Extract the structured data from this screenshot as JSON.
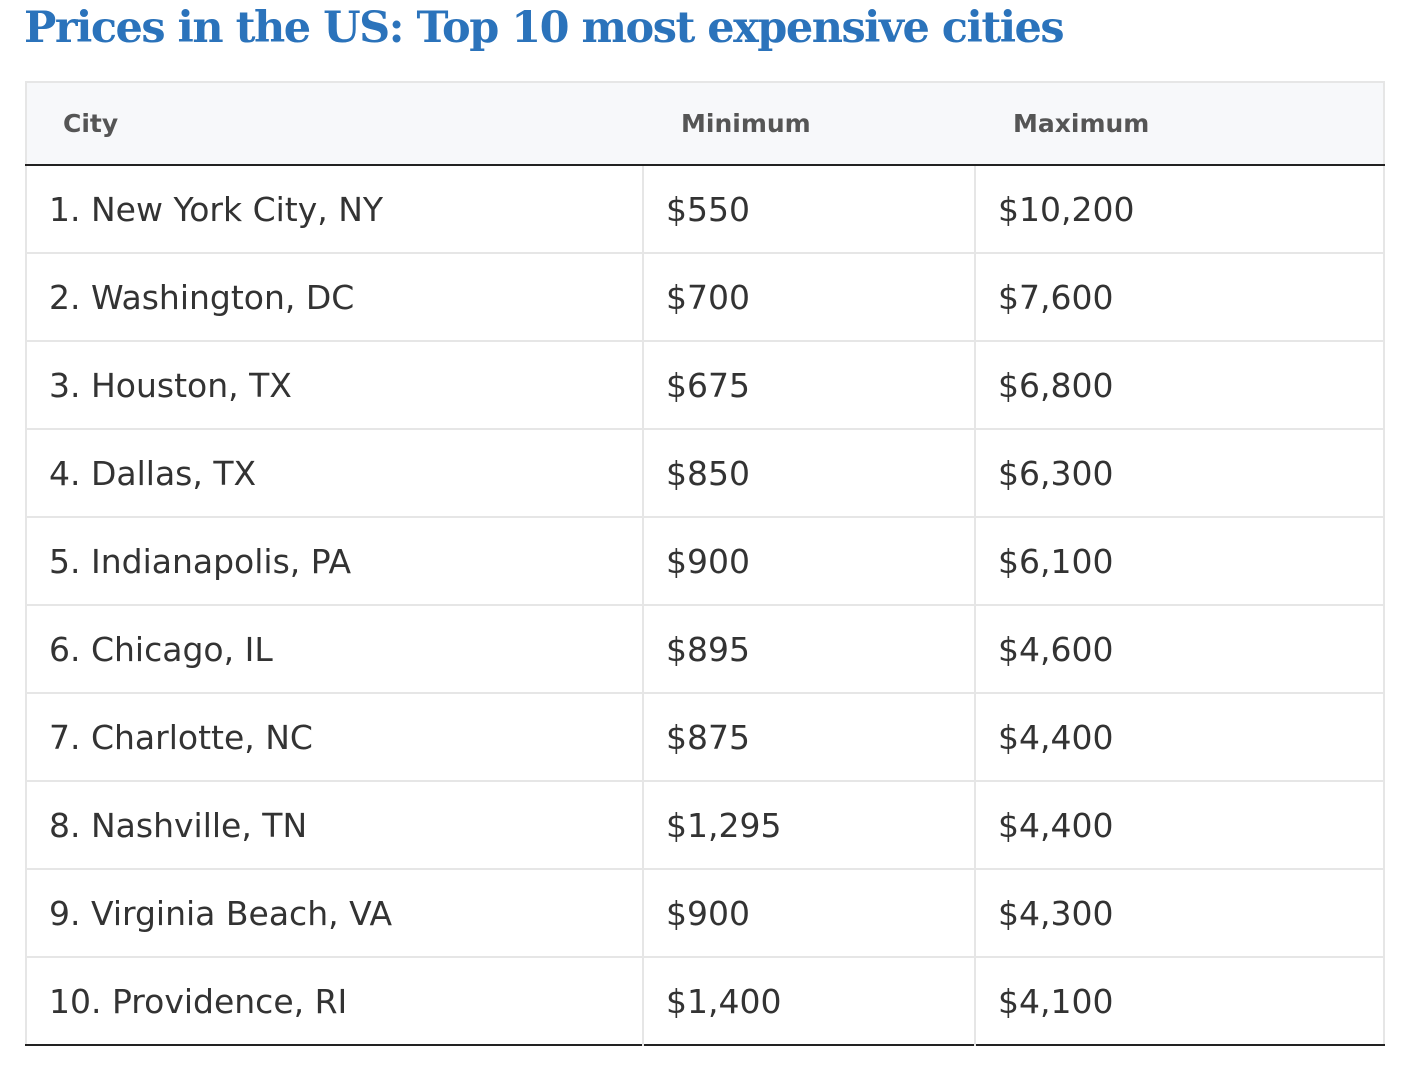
{
  "title": "Prices in the US: Top 10 most expensive cities",
  "table": {
    "headers": {
      "city": "City",
      "minimum": "Minimum",
      "maximum": "Maximum"
    },
    "rows": [
      {
        "city": "1. New York City, NY",
        "minimum": "$550",
        "maximum": "$10,200"
      },
      {
        "city": "2. Washington, DC",
        "minimum": "$700",
        "maximum": "$7,600"
      },
      {
        "city": "3. Houston, TX",
        "minimum": "$675",
        "maximum": "$6,800"
      },
      {
        "city": "4. Dallas, TX",
        "minimum": "$850",
        "maximum": "$6,300"
      },
      {
        "city": "5. Indianapolis, PA",
        "minimum": "$900",
        "maximum": "$6,100"
      },
      {
        "city": "6. Chicago, IL",
        "minimum": "$895",
        "maximum": "$4,600"
      },
      {
        "city": "7. Charlotte, NC",
        "minimum": "$875",
        "maximum": "$4,400"
      },
      {
        "city": "8. Nashville, TN",
        "minimum": "$1,295",
        "maximum": "$4,400"
      },
      {
        "city": "9. Virginia Beach, VA",
        "minimum": "$900",
        "maximum": "$4,300"
      },
      {
        "city": "10. Providence, RI",
        "minimum": "$1,400",
        "maximum": "$4,100"
      }
    ]
  },
  "colors": {
    "title": "#2b73bb",
    "header_bg": "#f7f8fa",
    "header_text": "#555555",
    "cell_text": "#333333",
    "grid": "#e6e6e6",
    "rule": "#222222"
  }
}
